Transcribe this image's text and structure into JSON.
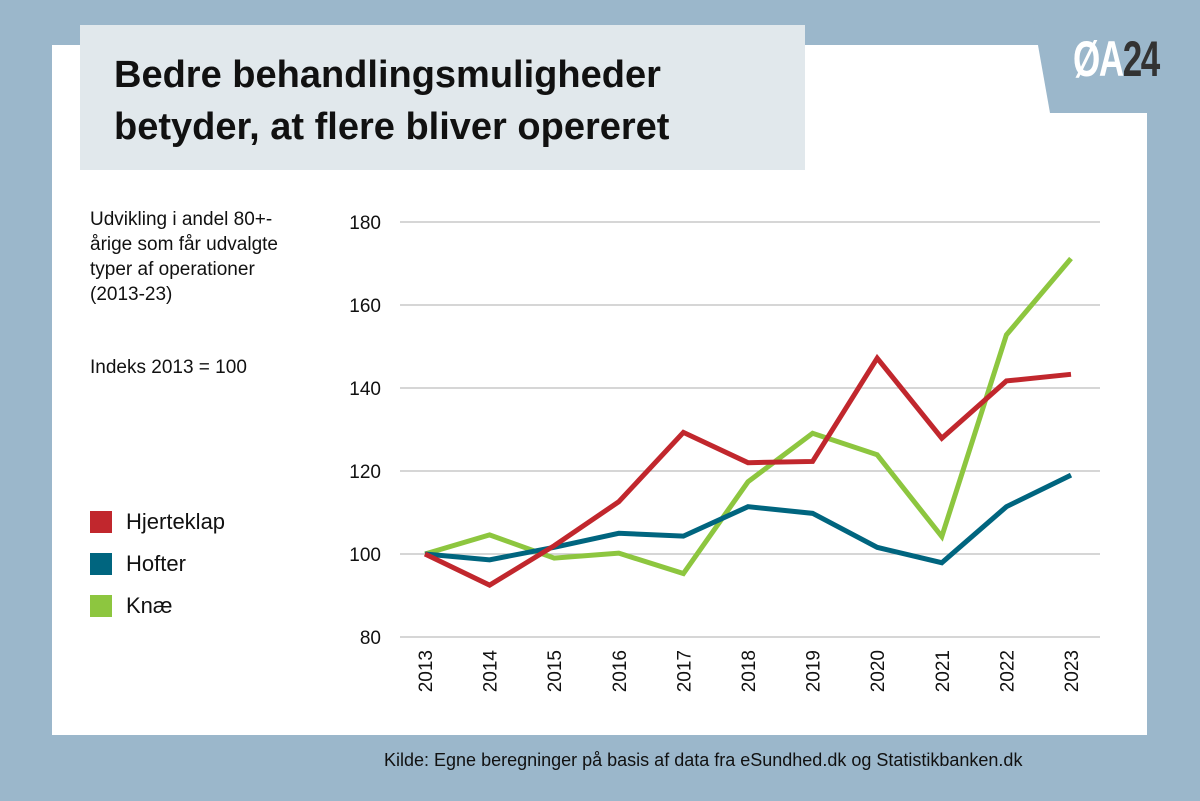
{
  "title_line1": "Bedre behandlingsmuligheder",
  "title_line2": "betyder, at flere bliver opereret",
  "logo": {
    "part1": "ØA",
    "part2": "24"
  },
  "subtitle": "Udvikling i andel 80+-årige som får udvalgte typer af operationer (2013-23)",
  "index_note": "Indeks 2013 = 100",
  "source": "Kilde: Egne beregninger på basis af data fra eSundhed.dk og Statistikbanken.dk",
  "colors": {
    "background": "#9bb7cb",
    "title_box": "#e1e8ec",
    "grid": "#bdbdbd"
  },
  "chart_data": {
    "type": "line",
    "title": "",
    "xlabel": "",
    "ylabel": "",
    "ylim": [
      80,
      180
    ],
    "yticks": [
      80,
      100,
      120,
      140,
      160,
      180
    ],
    "grid": true,
    "legend_position": "left",
    "categories": [
      "2013",
      "2014",
      "2015",
      "2016",
      "2017",
      "2018",
      "2019",
      "2020",
      "2021",
      "2022",
      "2023"
    ],
    "series": [
      {
        "name": "Hjerteklap",
        "color": "#c1272d",
        "values": [
          100,
          92.5,
          102,
          112.6,
          129.3,
          122,
          122.3,
          147.2,
          127.9,
          141.7,
          143.3
        ]
      },
      {
        "name": "Hofter",
        "color": "#00657f",
        "values": [
          100,
          98.6,
          101.6,
          105,
          104.3,
          111.4,
          109.8,
          101.6,
          97.9,
          111.4,
          119
        ]
      },
      {
        "name": "Knæ",
        "color": "#8dc63f",
        "values": [
          100,
          104.6,
          99,
          100.2,
          95.3,
          117.4,
          129.1,
          123.9,
          104.2,
          152.8,
          171.2
        ]
      }
    ]
  }
}
